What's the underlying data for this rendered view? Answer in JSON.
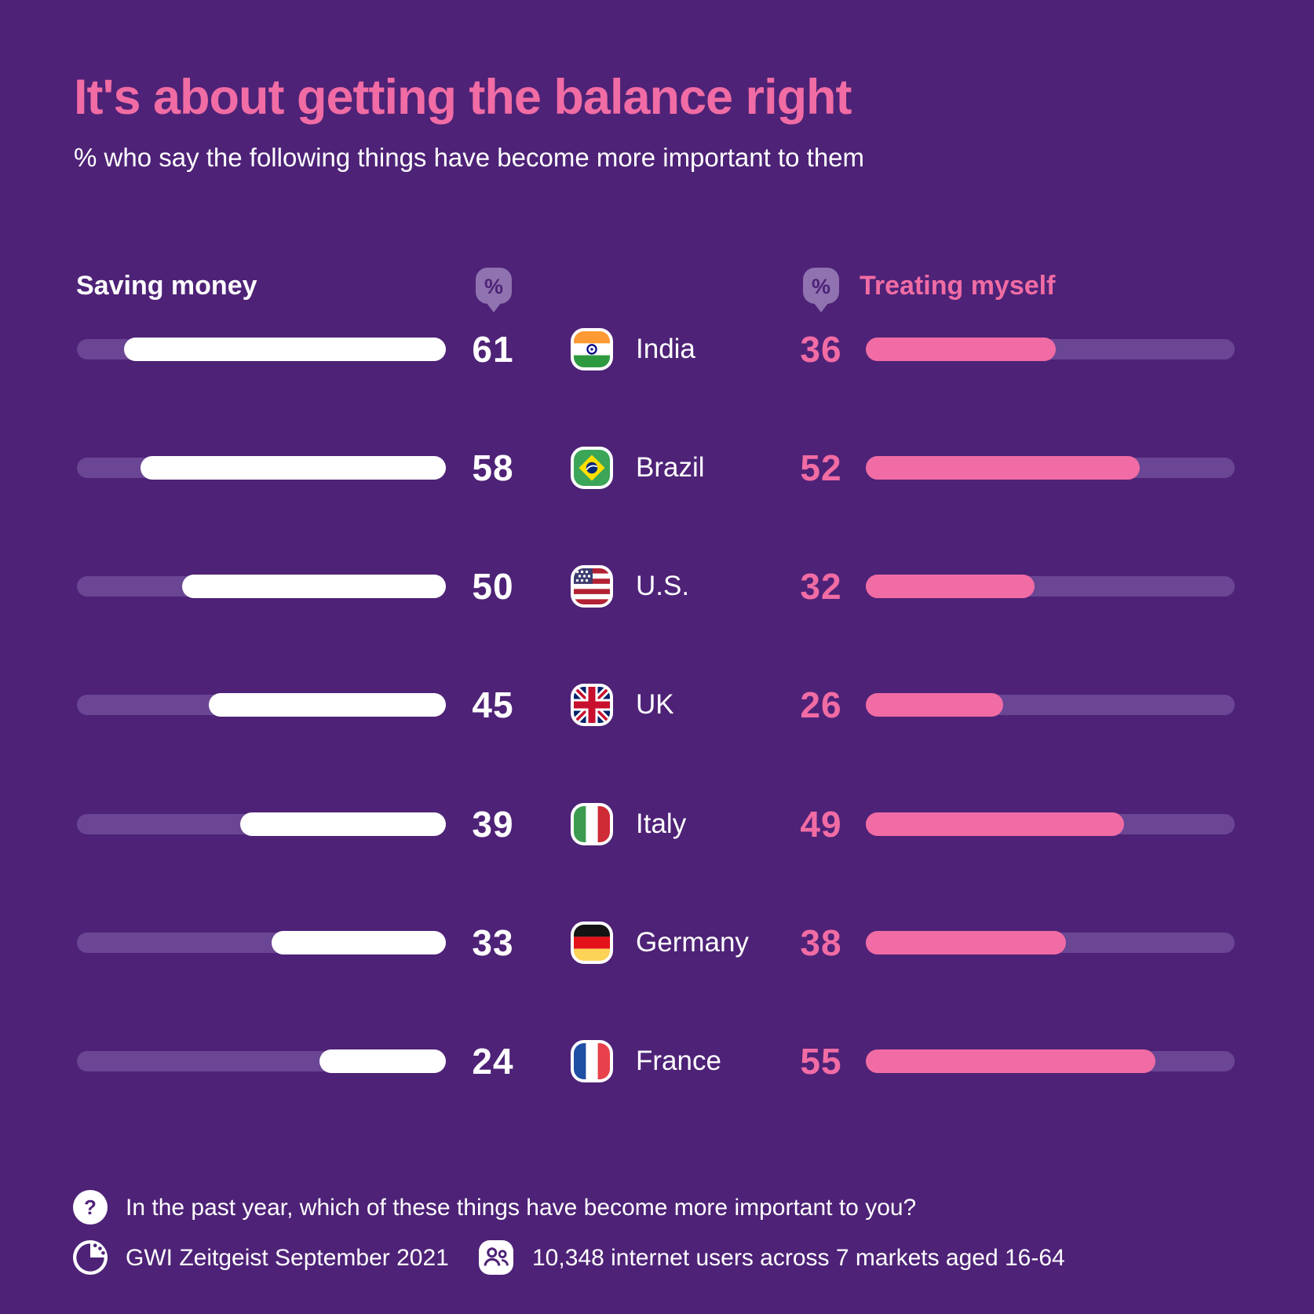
{
  "title": "It's about getting the balance right",
  "subtitle": "% who say the following things have become more important to them",
  "columns": {
    "left": "Saving money",
    "right": "Treating myself"
  },
  "icons": {
    "percent_pin": "%",
    "question": "?"
  },
  "colors": {
    "background": "#4E2277",
    "pink": "#F16CA4",
    "bar_track": "#6A4694",
    "bar_fill_left": "#FFFFFF",
    "pin": "#8F72AF"
  },
  "chart_data": {
    "type": "bar",
    "orientation": "horizontal",
    "title": "It's about getting the balance right",
    "subtitle": "% who say the following things have become more important to them",
    "categories": [
      "India",
      "Brazil",
      "U.S.",
      "UK",
      "Italy",
      "Germany",
      "France"
    ],
    "series": [
      {
        "name": "Saving money",
        "values": [
          61,
          58,
          50,
          45,
          39,
          33,
          24
        ]
      },
      {
        "name": "Treating myself",
        "values": [
          36,
          52,
          32,
          26,
          49,
          38,
          55
        ]
      }
    ],
    "xlim": [
      0,
      70
    ],
    "value_labels": true,
    "grid": false,
    "legend_position": "top"
  },
  "rows": [
    {
      "country": "India",
      "saving": 61,
      "treating": 36
    },
    {
      "country": "Brazil",
      "saving": 58,
      "treating": 52
    },
    {
      "country": "U.S.",
      "saving": 50,
      "treating": 32
    },
    {
      "country": "UK",
      "saving": 45,
      "treating": 26
    },
    {
      "country": "Italy",
      "saving": 39,
      "treating": 49
    },
    {
      "country": "Germany",
      "saving": 33,
      "treating": 38
    },
    {
      "country": "France",
      "saving": 24,
      "treating": 55
    }
  ],
  "footer": {
    "question": "In the past year, which of these things have become more important to you?",
    "source": "GWI Zeitgeist September 2021",
    "sample": "10,348 internet users across 7 markets aged 16-64"
  }
}
